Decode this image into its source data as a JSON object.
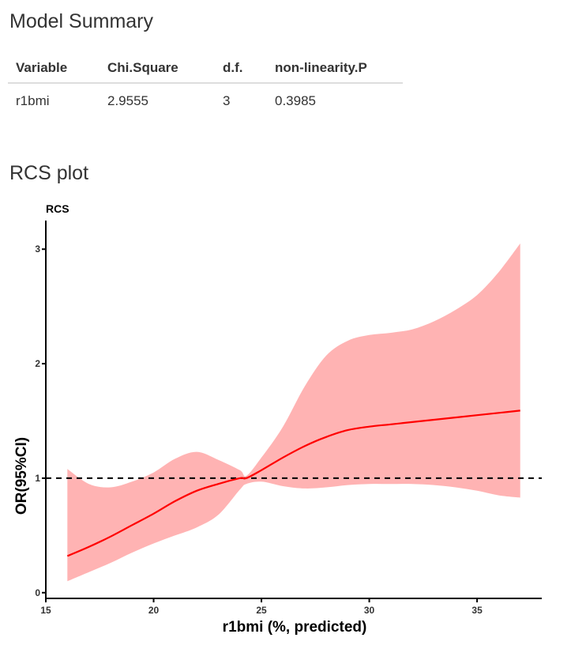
{
  "summary": {
    "title": "Model Summary",
    "columns": [
      "Variable",
      "Chi.Square",
      "d.f.",
      "non-linearity.P"
    ],
    "rows": [
      [
        "r1bmi",
        "2.9555",
        "3",
        "0.3985"
      ]
    ]
  },
  "plot_section": {
    "title": "RCS plot"
  },
  "chart_data": {
    "type": "line",
    "title": "RCS",
    "xlabel": "r1bmi (%, predicted)",
    "ylabel": "OR(95%CI)",
    "xlim": [
      15,
      38
    ],
    "ylim": [
      -0.05,
      3.25
    ],
    "xticks": [
      15,
      20,
      25,
      30,
      35
    ],
    "yticks": [
      0,
      1,
      2,
      3
    ],
    "reference_line": {
      "y": 1,
      "style": "dashed",
      "color": "#000000"
    },
    "line_color": "#ff0000",
    "band_color": "#ffb3b3",
    "series": [
      {
        "x": [
          16,
          17,
          18,
          19,
          20,
          21,
          22,
          23,
          24,
          24.3,
          25,
          26,
          27,
          28,
          29,
          30,
          31,
          32,
          33,
          34,
          35,
          36,
          37
        ],
        "y": [
          0.32,
          0.4,
          0.49,
          0.59,
          0.69,
          0.8,
          0.89,
          0.95,
          1.0,
          1.0,
          1.07,
          1.18,
          1.28,
          1.36,
          1.42,
          1.45,
          1.47,
          1.49,
          1.51,
          1.53,
          1.55,
          1.57,
          1.59
        ],
        "lower": [
          0.1,
          0.18,
          0.26,
          0.35,
          0.43,
          0.5,
          0.57,
          0.68,
          0.9,
          0.95,
          0.97,
          0.93,
          0.91,
          0.92,
          0.94,
          0.95,
          0.95,
          0.95,
          0.94,
          0.92,
          0.89,
          0.85,
          0.83
        ],
        "upper": [
          1.08,
          0.95,
          0.92,
          0.97,
          1.05,
          1.17,
          1.23,
          1.16,
          1.07,
          1.02,
          1.18,
          1.45,
          1.8,
          2.07,
          2.2,
          2.25,
          2.27,
          2.3,
          2.37,
          2.47,
          2.6,
          2.8,
          3.05
        ]
      }
    ]
  }
}
